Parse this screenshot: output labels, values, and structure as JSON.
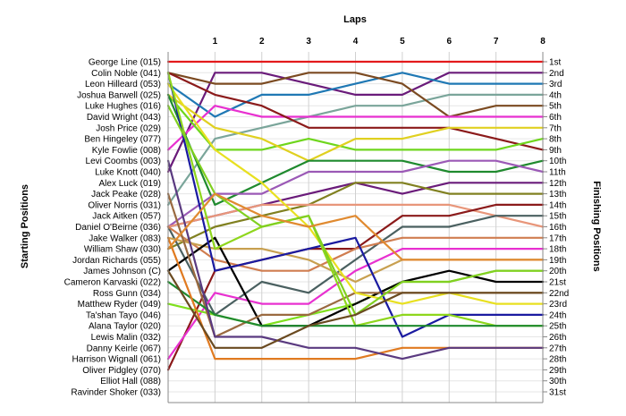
{
  "chart_data": {
    "type": "line",
    "title": "",
    "top_axis_label": "Laps",
    "left_axis_label": "Starting Positions",
    "right_axis_label": "Finishing Positions",
    "x_ticks": [
      "1",
      "2",
      "3",
      "4",
      "5",
      "6",
      "7",
      "8"
    ],
    "xlim": [
      0,
      8
    ],
    "ylim": [
      1,
      31
    ],
    "y_axis_reversed": true,
    "grid": "horizontal",
    "starting_positions": [
      "George Line (015)",
      "Colin Noble (041)",
      "Leon Hilleard (053)",
      "Joshua Barwell (025)",
      "Luke Hughes (016)",
      "David Wright (043)",
      "Josh Price (029)",
      "Ben Hingeley (077)",
      "Kyle Fowlie (008)",
      "Levi Coombs (003)",
      "Luke Knott (040)",
      "Alex Luck (019)",
      "Jack Peake (028)",
      "Oliver Norris (031)",
      "Jack Aitken (057)",
      "Daniel O'Beirne (036)",
      "Jake Walker (083)",
      "William Shaw (030)",
      "Jordan Richards (055)",
      "James Johnson (C)",
      "Cameron Karvaski (022)",
      "Ross Gunn (034)",
      "Matthew Ryder (049)",
      "Ta'shan Tayo (046)",
      "Alana Taylor (020)",
      "Lewis Malin (032)",
      "Danny Keirle (067)",
      "Harrison Wignall (061)",
      "Oliver Pidgley (070)",
      "Elliot Hall (088)",
      "Ravinder Shoker (033)"
    ],
    "finishing_positions": [
      "1st",
      "2nd",
      "3rd",
      "4th",
      "5th",
      "6th",
      "7th",
      "8th",
      "9th",
      "10th",
      "11th",
      "12th",
      "13th",
      "14th",
      "15th",
      "16th",
      "17th",
      "18th",
      "19th",
      "20th",
      "21st",
      "22nd",
      "23rd",
      "24th",
      "25th",
      "26th",
      "27th",
      "28th",
      "29th",
      "30th",
      "31st"
    ],
    "series": [
      {
        "color": "#e31a1c",
        "values": [
          1,
          1,
          1,
          1,
          1,
          1,
          1,
          1,
          1
        ]
      },
      {
        "color": "#6a1b7a",
        "values": [
          11,
          2,
          2,
          3,
          4,
          4,
          2,
          2,
          2
        ]
      },
      {
        "color": "#1f78b4",
        "values": [
          3,
          6,
          4,
          4,
          3,
          2,
          3,
          3,
          3
        ]
      },
      {
        "color": "#7aa59a",
        "values": [
          14,
          8,
          7,
          6,
          5,
          5,
          4,
          4,
          4
        ]
      },
      {
        "color": "#7b4a21",
        "values": [
          2,
          3,
          3,
          2,
          2,
          3,
          6,
          5,
          5
        ]
      },
      {
        "color": "#e830d0",
        "values": [
          9,
          5,
          6,
          6,
          6,
          6,
          6,
          6,
          6
        ]
      },
      {
        "color": "#8b1a1a",
        "values": [
          2,
          4,
          5,
          7,
          7,
          7,
          7,
          8,
          9
        ]
      },
      {
        "color": "#6ed61c",
        "values": [
          4,
          9,
          9,
          8,
          9,
          9,
          9,
          9,
          8
        ]
      },
      {
        "color": "#e0d020",
        "values": [
          4,
          7,
          8,
          10,
          8,
          8,
          7,
          7,
          7
        ]
      },
      {
        "color": "#1f8a2e",
        "values": [
          4,
          14,
          12,
          10,
          10,
          10,
          11,
          11,
          10
        ]
      },
      {
        "color": "#9b59b6",
        "values": [
          16,
          13,
          13,
          11,
          11,
          11,
          10,
          10,
          11
        ]
      },
      {
        "color": "#6a1b7a",
        "values": [
          16,
          15,
          14,
          13,
          12,
          13,
          12,
          12,
          12
        ]
      },
      {
        "color": "#808020",
        "values": [
          18,
          16,
          15,
          14,
          12,
          12,
          13,
          13,
          13
        ]
      },
      {
        "color": "#e8967a",
        "values": [
          16,
          15,
          14,
          14,
          14,
          14,
          14,
          15,
          16
        ]
      },
      {
        "color": "#8b1a1a",
        "values": [
          29,
          20,
          19,
          18,
          18,
          15,
          15,
          14,
          14
        ]
      },
      {
        "color": "#4a6060",
        "values": [
          16,
          24,
          21,
          22,
          19,
          16,
          16,
          15,
          15
        ]
      },
      {
        "color": "#d07d50",
        "values": [
          16,
          19,
          20,
          20,
          18,
          17,
          17,
          17,
          17
        ]
      },
      {
        "color": "#e830d0",
        "values": [
          28,
          22,
          23,
          23,
          20,
          18,
          18,
          18,
          18
        ]
      },
      {
        "color": "#c8a050",
        "values": [
          17,
          18,
          18,
          19,
          21,
          19,
          19,
          19,
          19
        ]
      },
      {
        "color": "#7ee01c",
        "values": [
          23,
          24,
          25,
          24,
          23,
          21,
          21,
          20,
          20
        ]
      },
      {
        "color": "#000000",
        "values": [
          20,
          17,
          25,
          25,
          23,
          21,
          20,
          21,
          21
        ]
      },
      {
        "color": "#9a6a40",
        "values": [
          13,
          26,
          24,
          24,
          22,
          22,
          22,
          22,
          22
        ]
      },
      {
        "color": "#e8e020",
        "values": [
          3,
          9,
          12,
          16,
          22,
          23,
          22,
          23,
          23
        ]
      },
      {
        "color": "#1a1aa0",
        "values": [
          2,
          20,
          19,
          18,
          17,
          26,
          24,
          24,
          24
        ]
      },
      {
        "color": "#8ed61c",
        "values": [
          2,
          18,
          16,
          15,
          25,
          24,
          24,
          25,
          25
        ]
      },
      {
        "color": "#1f8a2e",
        "values": [
          21,
          24,
          25,
          25,
          25,
          25,
          25,
          25,
          25
        ]
      },
      {
        "color": "#e07a20",
        "values": [
          17,
          28,
          28,
          28,
          28,
          27,
          27,
          27,
          27
        ]
      },
      {
        "color": "#5a3a80",
        "values": [
          10,
          26,
          26,
          27,
          27,
          28,
          27,
          27,
          27
        ]
      },
      {
        "color": "#80d020",
        "values": [
          5,
          13,
          16,
          15,
          24,
          21,
          21,
          20,
          20
        ]
      },
      {
        "color": "#e08a30",
        "values": [
          18,
          13,
          15,
          16,
          15,
          19,
          19,
          19,
          19
        ]
      },
      {
        "color": "#6a4a20",
        "values": [
          20,
          27,
          27,
          25,
          24,
          22,
          22,
          22,
          22
        ]
      }
    ]
  }
}
